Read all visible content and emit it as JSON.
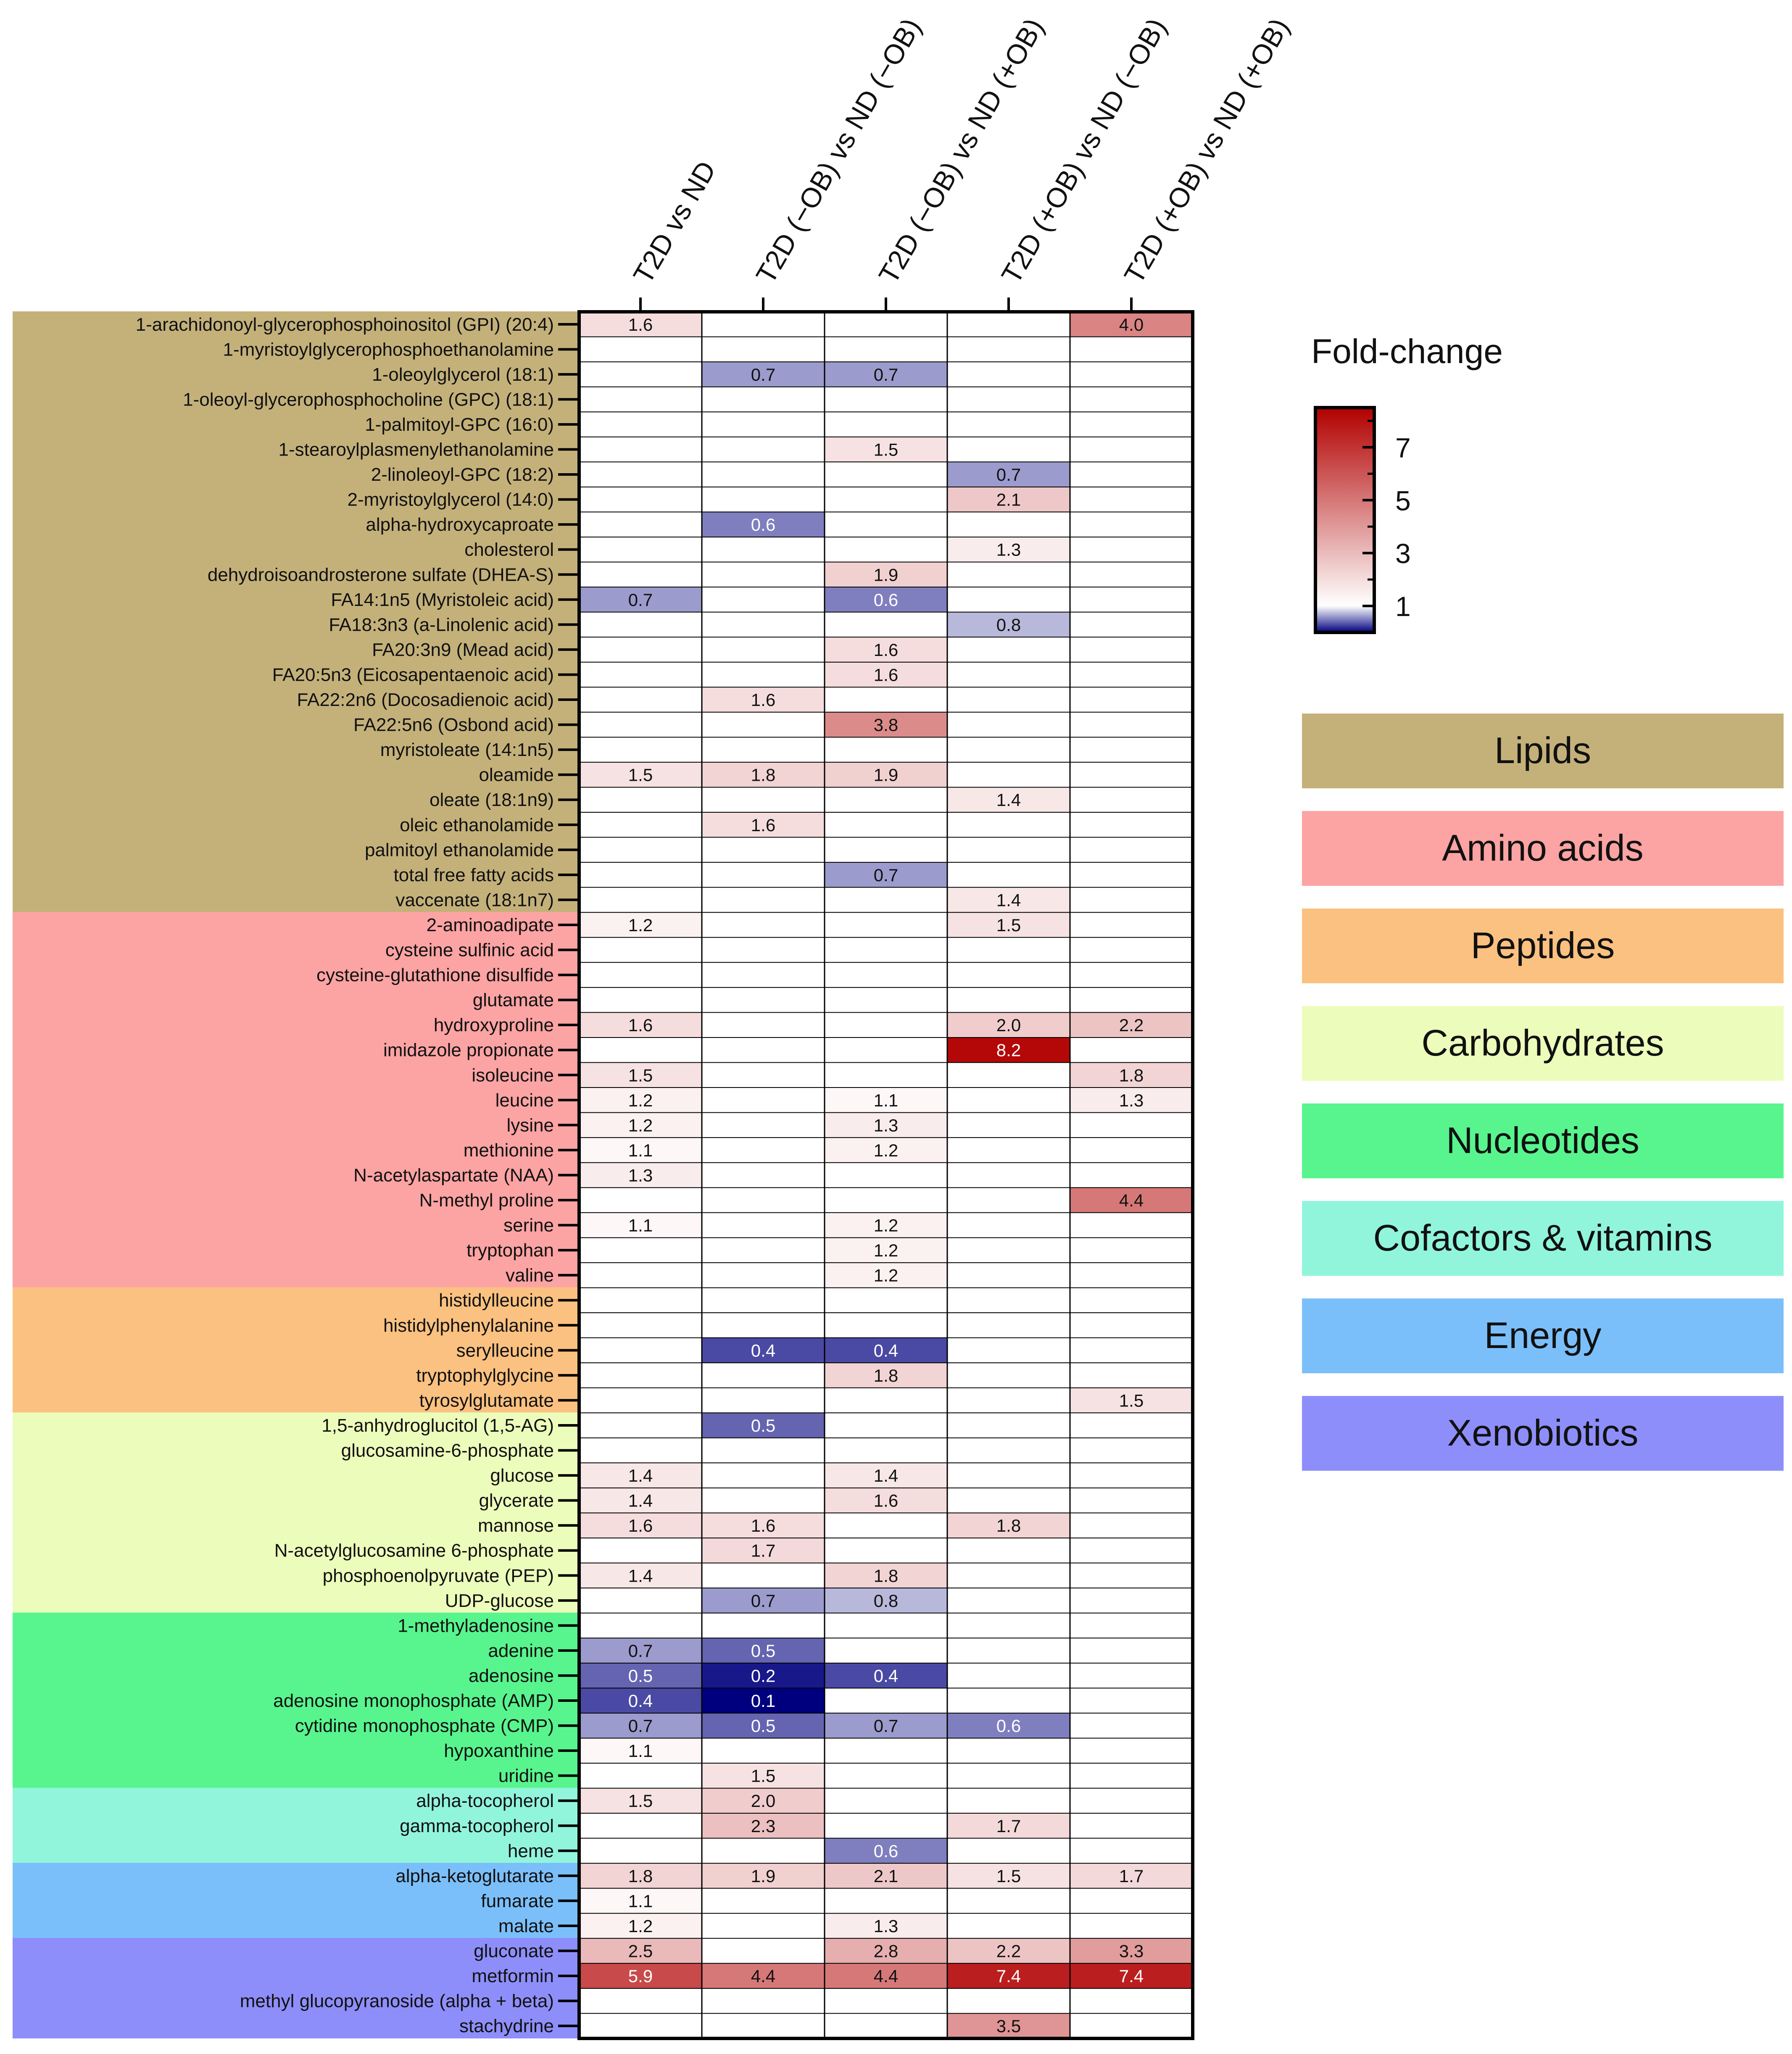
{
  "chart_data": {
    "type": "heatmap",
    "columns": [
      "T2D vs ND",
      "T2D (−OB) vs ND (−OB)",
      "T2D (−OB) vs ND (+OB)",
      "T2D (+OB) vs ND (−OB)",
      "T2D (+OB) vs ND (+OB)"
    ],
    "rows": [
      {
        "label": "1-arachidonoyl-glycerophosphoinositol (GPI) (20:4)",
        "category": "Lipids",
        "values": [
          1.6,
          null,
          null,
          null,
          4.0
        ]
      },
      {
        "label": "1-myristoylglycerophosphoethanolamine",
        "category": "Lipids",
        "values": [
          null,
          null,
          null,
          null,
          null
        ]
      },
      {
        "label": "1-oleoylglycerol (18:1)",
        "category": "Lipids",
        "values": [
          null,
          0.7,
          0.7,
          null,
          null
        ]
      },
      {
        "label": "1-oleoyl-glycerophosphocholine (GPC) (18:1)",
        "category": "Lipids",
        "values": [
          null,
          null,
          null,
          null,
          null
        ]
      },
      {
        "label": "1-palmitoyl-GPC (16:0)",
        "category": "Lipids",
        "values": [
          null,
          null,
          null,
          null,
          null
        ]
      },
      {
        "label": "1-stearoylplasmenylethanolamine",
        "category": "Lipids",
        "values": [
          null,
          null,
          1.5,
          null,
          null
        ]
      },
      {
        "label": "2-linoleoyl-GPC (18:2)",
        "category": "Lipids",
        "values": [
          null,
          null,
          null,
          0.7,
          null
        ]
      },
      {
        "label": "2-myristoylglycerol (14:0)",
        "category": "Lipids",
        "values": [
          null,
          null,
          null,
          2.1,
          null
        ]
      },
      {
        "label": "alpha-hydroxycaproate",
        "category": "Lipids",
        "values": [
          null,
          0.6,
          null,
          null,
          null
        ]
      },
      {
        "label": "cholesterol",
        "category": "Lipids",
        "values": [
          null,
          null,
          null,
          1.3,
          null
        ]
      },
      {
        "label": "dehydroisoandrosterone sulfate (DHEA-S)",
        "category": "Lipids",
        "values": [
          null,
          null,
          1.9,
          null,
          null
        ]
      },
      {
        "label": "FA14:1n5 (Myristoleic acid)",
        "category": "Lipids",
        "values": [
          0.7,
          null,
          0.6,
          null,
          null
        ]
      },
      {
        "label": "FA18:3n3 (a-Linolenic acid)",
        "category": "Lipids",
        "values": [
          null,
          null,
          null,
          0.8,
          null
        ]
      },
      {
        "label": "FA20:3n9 (Mead acid)",
        "category": "Lipids",
        "values": [
          null,
          null,
          1.6,
          null,
          null
        ]
      },
      {
        "label": "FA20:5n3 (Eicosapentaenoic acid)",
        "category": "Lipids",
        "values": [
          null,
          null,
          1.6,
          null,
          null
        ]
      },
      {
        "label": "FA22:2n6 (Docosadienoic acid)",
        "category": "Lipids",
        "values": [
          null,
          1.6,
          null,
          null,
          null
        ]
      },
      {
        "label": "FA22:5n6 (Osbond acid)",
        "category": "Lipids",
        "values": [
          null,
          null,
          3.8,
          null,
          null
        ]
      },
      {
        "label": "myristoleate (14:1n5)",
        "category": "Lipids",
        "values": [
          null,
          null,
          null,
          null,
          null
        ]
      },
      {
        "label": "oleamide",
        "category": "Lipids",
        "values": [
          1.5,
          1.8,
          1.9,
          null,
          null
        ]
      },
      {
        "label": "oleate (18:1n9)",
        "category": "Lipids",
        "values": [
          null,
          null,
          null,
          1.4,
          null
        ]
      },
      {
        "label": "oleic ethanolamide",
        "category": "Lipids",
        "values": [
          null,
          1.6,
          null,
          null,
          null
        ]
      },
      {
        "label": "palmitoyl ethanolamide",
        "category": "Lipids",
        "values": [
          null,
          null,
          null,
          null,
          null
        ]
      },
      {
        "label": "total free fatty acids",
        "category": "Lipids",
        "values": [
          null,
          null,
          0.7,
          null,
          null
        ]
      },
      {
        "label": "vaccenate (18:1n7)",
        "category": "Lipids",
        "values": [
          null,
          null,
          null,
          1.4,
          null
        ]
      },
      {
        "label": "2-aminoadipate",
        "category": "Amino acids",
        "values": [
          1.2,
          null,
          null,
          1.5,
          null
        ]
      },
      {
        "label": "cysteine sulfinic acid",
        "category": "Amino acids",
        "values": [
          null,
          null,
          null,
          null,
          null
        ]
      },
      {
        "label": "cysteine-glutathione disulfide",
        "category": "Amino acids",
        "values": [
          null,
          null,
          null,
          null,
          null
        ]
      },
      {
        "label": "glutamate",
        "category": "Amino acids",
        "values": [
          null,
          null,
          null,
          null,
          null
        ]
      },
      {
        "label": "hydroxyproline",
        "category": "Amino acids",
        "values": [
          1.6,
          null,
          null,
          2.0,
          2.2
        ]
      },
      {
        "label": "imidazole propionate",
        "category": "Amino acids",
        "values": [
          null,
          null,
          null,
          8.2,
          null
        ]
      },
      {
        "label": "isoleucine",
        "category": "Amino acids",
        "values": [
          1.5,
          null,
          null,
          null,
          1.8
        ]
      },
      {
        "label": "leucine",
        "category": "Amino acids",
        "values": [
          1.2,
          null,
          1.1,
          null,
          1.3
        ]
      },
      {
        "label": "lysine",
        "category": "Amino acids",
        "values": [
          1.2,
          null,
          1.3,
          null,
          null
        ]
      },
      {
        "label": "methionine",
        "category": "Amino acids",
        "values": [
          1.1,
          null,
          1.2,
          null,
          null
        ]
      },
      {
        "label": "N-acetylaspartate (NAA)",
        "category": "Amino acids",
        "values": [
          1.3,
          null,
          null,
          null,
          null
        ]
      },
      {
        "label": "N-methyl proline",
        "category": "Amino acids",
        "values": [
          null,
          null,
          null,
          null,
          4.4
        ]
      },
      {
        "label": "serine",
        "category": "Amino acids",
        "values": [
          1.1,
          null,
          1.2,
          null,
          null
        ]
      },
      {
        "label": "tryptophan",
        "category": "Amino acids",
        "values": [
          null,
          null,
          1.2,
          null,
          null
        ]
      },
      {
        "label": "valine",
        "category": "Amino acids",
        "values": [
          null,
          null,
          1.2,
          null,
          null
        ]
      },
      {
        "label": "histidylleucine",
        "category": "Peptides",
        "values": [
          null,
          null,
          null,
          null,
          null
        ]
      },
      {
        "label": "histidylphenylalanine",
        "category": "Peptides",
        "values": [
          null,
          null,
          null,
          null,
          null
        ]
      },
      {
        "label": "serylleucine",
        "category": "Peptides",
        "values": [
          null,
          0.4,
          0.4,
          null,
          null
        ]
      },
      {
        "label": "tryptophylglycine",
        "category": "Peptides",
        "values": [
          null,
          null,
          1.8,
          null,
          null
        ]
      },
      {
        "label": "tyrosylglutamate",
        "category": "Peptides",
        "values": [
          null,
          null,
          null,
          null,
          1.5
        ]
      },
      {
        "label": "1,5-anhydroglucitol (1,5-AG)",
        "category": "Carbohydrates",
        "values": [
          null,
          0.5,
          null,
          null,
          null
        ]
      },
      {
        "label": "glucosamine-6-phosphate",
        "category": "Carbohydrates",
        "values": [
          null,
          null,
          null,
          null,
          null
        ]
      },
      {
        "label": "glucose",
        "category": "Carbohydrates",
        "values": [
          1.4,
          null,
          1.4,
          null,
          null
        ]
      },
      {
        "label": "glycerate",
        "category": "Carbohydrates",
        "values": [
          1.4,
          null,
          1.6,
          null,
          null
        ]
      },
      {
        "label": "mannose",
        "category": "Carbohydrates",
        "values": [
          1.6,
          1.6,
          null,
          1.8,
          null
        ]
      },
      {
        "label": "N-acetylglucosamine 6-phosphate",
        "category": "Carbohydrates",
        "values": [
          null,
          1.7,
          null,
          null,
          null
        ]
      },
      {
        "label": "phosphoenolpyruvate (PEP)",
        "category": "Carbohydrates",
        "values": [
          1.4,
          null,
          1.8,
          null,
          null
        ]
      },
      {
        "label": "UDP-glucose",
        "category": "Carbohydrates",
        "values": [
          null,
          0.7,
          0.8,
          null,
          null
        ]
      },
      {
        "label": "1-methyladenosine",
        "category": "Nucleotides",
        "values": [
          null,
          null,
          null,
          null,
          null
        ]
      },
      {
        "label": "adenine",
        "category": "Nucleotides",
        "values": [
          0.7,
          0.5,
          null,
          null,
          null
        ]
      },
      {
        "label": "adenosine",
        "category": "Nucleotides",
        "values": [
          0.5,
          0.2,
          0.4,
          null,
          null
        ]
      },
      {
        "label": "adenosine monophosphate (AMP)",
        "category": "Nucleotides",
        "values": [
          0.4,
          0.1,
          null,
          null,
          null
        ]
      },
      {
        "label": "cytidine monophosphate (CMP)",
        "category": "Nucleotides",
        "values": [
          0.7,
          0.5,
          0.7,
          0.6,
          null
        ]
      },
      {
        "label": "hypoxanthine",
        "category": "Nucleotides",
        "values": [
          1.1,
          null,
          null,
          null,
          null
        ]
      },
      {
        "label": "uridine",
        "category": "Nucleotides",
        "values": [
          null,
          1.5,
          null,
          null,
          null
        ]
      },
      {
        "label": "alpha-tocopherol",
        "category": "Cofactors & vitamins",
        "values": [
          1.5,
          2.0,
          null,
          null,
          null
        ]
      },
      {
        "label": "gamma-tocopherol",
        "category": "Cofactors & vitamins",
        "values": [
          null,
          2.3,
          null,
          1.7,
          null
        ]
      },
      {
        "label": "heme",
        "category": "Cofactors & vitamins",
        "values": [
          null,
          null,
          0.6,
          null,
          null
        ]
      },
      {
        "label": "alpha-ketoglutarate",
        "category": "Energy",
        "values": [
          1.8,
          1.9,
          2.1,
          1.5,
          1.7
        ]
      },
      {
        "label": "fumarate",
        "category": "Energy",
        "values": [
          1.1,
          null,
          null,
          null,
          null
        ]
      },
      {
        "label": "malate",
        "category": "Energy",
        "values": [
          1.2,
          null,
          1.3,
          null,
          null
        ]
      },
      {
        "label": "gluconate",
        "category": "Xenobiotics",
        "values": [
          2.5,
          null,
          2.8,
          2.2,
          3.3
        ]
      },
      {
        "label": "metformin",
        "category": "Xenobiotics",
        "values": [
          5.9,
          4.4,
          4.4,
          7.4,
          7.4
        ]
      },
      {
        "label": "methyl glucopyranoside (alpha + beta)",
        "category": "Xenobiotics",
        "values": [
          null,
          null,
          null,
          null,
          null
        ]
      },
      {
        "label": "stachydrine",
        "category": "Xenobiotics",
        "values": [
          null,
          null,
          null,
          3.5,
          null
        ]
      }
    ],
    "categories": [
      {
        "name": "Lipids",
        "color": "#c4b17a"
      },
      {
        "name": "Amino acids",
        "color": "#fca3a3"
      },
      {
        "name": "Peptides",
        "color": "#fbc180"
      },
      {
        "name": "Carbohydrates",
        "color": "#ecfcbb"
      },
      {
        "name": "Nucleotides",
        "color": "#58f58e"
      },
      {
        "name": "Cofactors & vitamins",
        "color": "#91f5dc"
      },
      {
        "name": "Energy",
        "color": "#7bbffa"
      },
      {
        "name": "Xenobiotics",
        "color": "#8e8efb"
      }
    ],
    "color_scale": {
      "title": "Fold-change",
      "ticks": [
        "7",
        "5",
        "3",
        "1"
      ],
      "tick_values": [
        7,
        5,
        3,
        1
      ],
      "range": [
        0,
        8.5
      ],
      "low_color": "#00007f",
      "mid_color": "#ffffff",
      "high_color": "#b20000"
    }
  }
}
